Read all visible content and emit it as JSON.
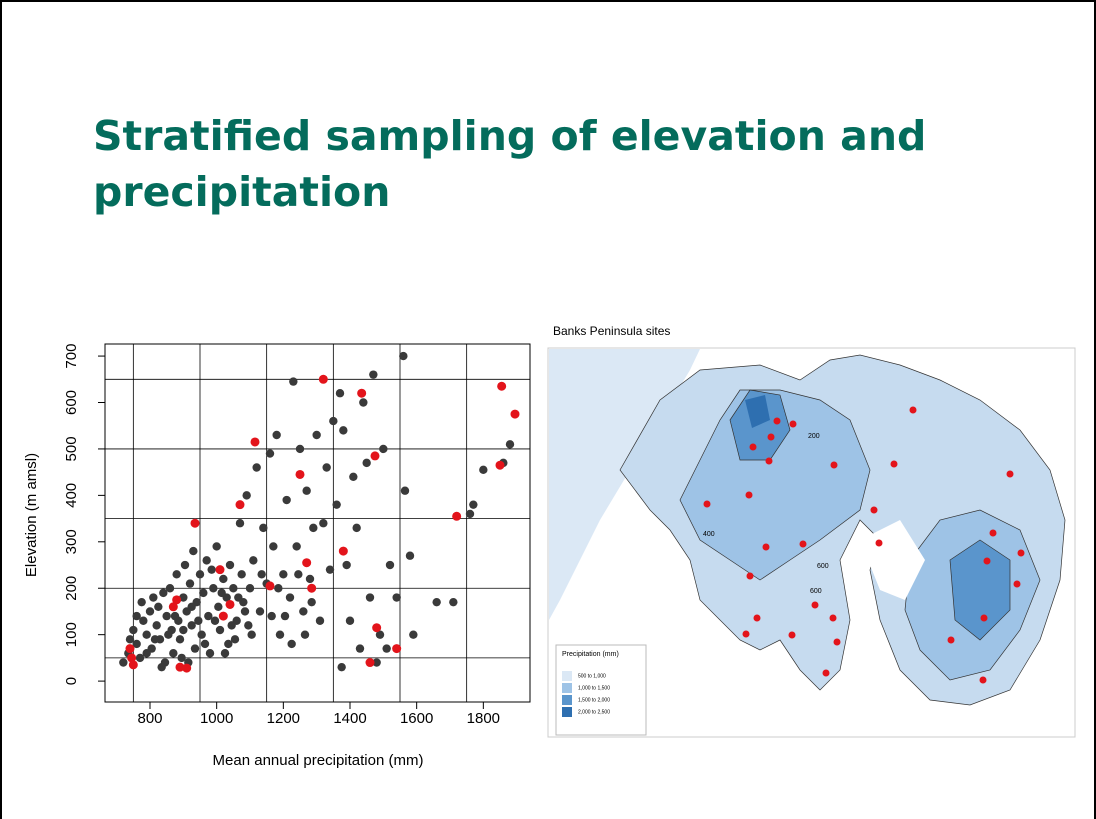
{
  "slide_title": "Stratified sampling of elevation and precipitation",
  "chart_data": {
    "type": "scatter",
    "x_label": "Mean annual precipitation (mm)",
    "y_label": "Elevation (m amsl)",
    "xlim": [
      665,
      1940
    ],
    "ylim": [
      -45,
      726
    ],
    "xticks": [
      800,
      1000,
      1200,
      1400,
      1600,
      1800
    ],
    "yticks": [
      0,
      100,
      200,
      300,
      400,
      500,
      600,
      700
    ],
    "xbreaks": [
      750,
      950,
      1150,
      1350,
      1550,
      1750
    ],
    "ybreaks": [
      50,
      200,
      350,
      500,
      650
    ],
    "series": [
      {
        "color": "#3a3a3a",
        "x": [
          720,
          735,
          740,
          750,
          760,
          770,
          780,
          790,
          800,
          805,
          810,
          820,
          830,
          840,
          845,
          850,
          860,
          865,
          870,
          880,
          885,
          890,
          900,
          905,
          910,
          915,
          920,
          925,
          930,
          935,
          940,
          950,
          955,
          960,
          970,
          975,
          980,
          990,
          1000,
          1005,
          1010,
          1020,
          1030,
          1035,
          1040,
          1050,
          1060,
          1070,
          1075,
          1080,
          1090,
          1095,
          1100,
          1110,
          1120,
          1130,
          1140,
          1150,
          1160,
          1170,
          1180,
          1190,
          1200,
          1210,
          1220,
          1230,
          1240,
          1250,
          1260,
          1270,
          1280,
          1290,
          1300,
          1310,
          1320,
          1330,
          1340,
          1350,
          1360,
          1370,
          1375,
          1380,
          1390,
          1400,
          1410,
          1420,
          1430,
          1440,
          1450,
          1460,
          1470,
          1480,
          1490,
          1500,
          1510,
          1520,
          1540,
          1560,
          1565,
          1580,
          1590,
          1660,
          1710,
          1760,
          1770,
          1800,
          1860,
          1880,
          760,
          775,
          790,
          815,
          825,
          835,
          855,
          875,
          895,
          900,
          925,
          945,
          965,
          985,
          995,
          1015,
          1025,
          1045,
          1055,
          1065,
          1085,
          1105,
          1135,
          1165,
          1185,
          1205,
          1225,
          1245,
          1265,
          1285
        ],
        "values": [
          40,
          60,
          90,
          110,
          80,
          50,
          130,
          100,
          150,
          70,
          180,
          120,
          90,
          190,
          40,
          140,
          200,
          110,
          60,
          230,
          130,
          90,
          180,
          250,
          150,
          40,
          210,
          120,
          280,
          70,
          170,
          230,
          100,
          190,
          260,
          140,
          60,
          200,
          290,
          160,
          110,
          220,
          180,
          80,
          250,
          200,
          130,
          340,
          230,
          170,
          400,
          120,
          200,
          260,
          460,
          150,
          330,
          210,
          490,
          290,
          530,
          100,
          230,
          390,
          180,
          645,
          290,
          500,
          150,
          410,
          220,
          330,
          530,
          130,
          340,
          460,
          240,
          560,
          380,
          620,
          30,
          540,
          250,
          130,
          440,
          330,
          70,
          600,
          470,
          180,
          660,
          40,
          100,
          500,
          70,
          250,
          180,
          700,
          410,
          270,
          100,
          170,
          170,
          360,
          380,
          455,
          470,
          510,
          140,
          170,
          60,
          90,
          160,
          30,
          100,
          140,
          50,
          110,
          160,
          130,
          80,
          240,
          130,
          190,
          60,
          120,
          90,
          180,
          150,
          100,
          230,
          140,
          200,
          140,
          80,
          230,
          100,
          170
        ]
      },
      {
        "color": "#e3141b",
        "x": [
          740,
          745,
          750,
          870,
          880,
          890,
          910,
          935,
          1010,
          1020,
          1040,
          1070,
          1115,
          1160,
          1250,
          1270,
          1285,
          1320,
          1380,
          1435,
          1460,
          1475,
          1480,
          1540,
          1720,
          1850,
          1855,
          1895
        ],
        "values": [
          70,
          50,
          35,
          160,
          175,
          30,
          28,
          340,
          240,
          140,
          165,
          380,
          515,
          205,
          445,
          255,
          200,
          650,
          280,
          620,
          40,
          485,
          115,
          70,
          355,
          465,
          635,
          575
        ]
      }
    ]
  },
  "map": {
    "title": "Banks Peninsula sites",
    "contour_labels": [
      "200",
      "400",
      "600",
      "600"
    ],
    "legend": {
      "title": "Precipitation (mm)",
      "entries": [
        "500 to 1,000",
        "1,000 to 1,500",
        "1,500 to 2,000",
        "2,000 to 2,500"
      ]
    }
  }
}
